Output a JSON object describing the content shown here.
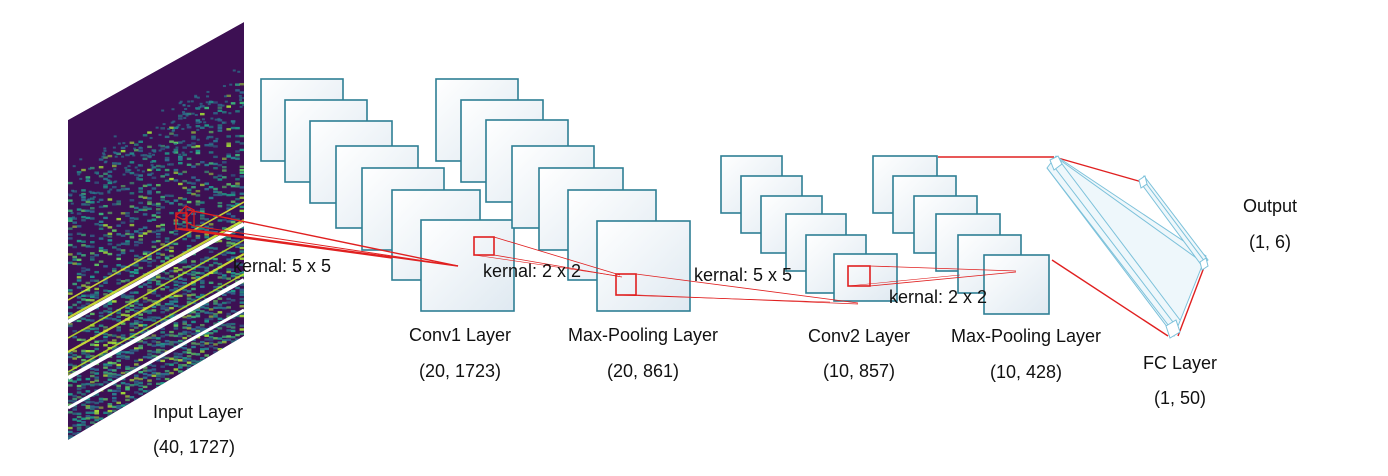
{
  "layers": {
    "input": {
      "name": "Input Layer",
      "shape": "(40, 1727)"
    },
    "conv1": {
      "name": "Conv1 Layer",
      "shape": "(20, 1723)"
    },
    "pool1": {
      "name": "Max-Pooling Layer",
      "shape": "(20, 861)"
    },
    "conv2": {
      "name": "Conv2 Layer",
      "shape": "(10, 857)"
    },
    "pool2": {
      "name": "Max-Pooling Layer",
      "shape": "(10, 428)"
    },
    "fc": {
      "name": "FC Layer",
      "shape": "(1, 50)"
    },
    "output": {
      "name": "Output",
      "shape": "(1, 6)"
    }
  },
  "kernels": {
    "conv1_kernel": "kernal: 5 x 5",
    "pool1_kernel": "kernal: 2 x 2",
    "conv2_kernel": "kernal: 5 x 5",
    "pool2_kernel": "kernal: 2 x 2"
  },
  "colors": {
    "feature_map_border": "#2e7f94",
    "kernel_line": "#e02020",
    "fc_line": "#7cc1da",
    "spectrogram_bg": "#3d1053",
    "spectrogram_mid": "#1f8a8a",
    "spectrogram_hi": "#d6e832"
  }
}
